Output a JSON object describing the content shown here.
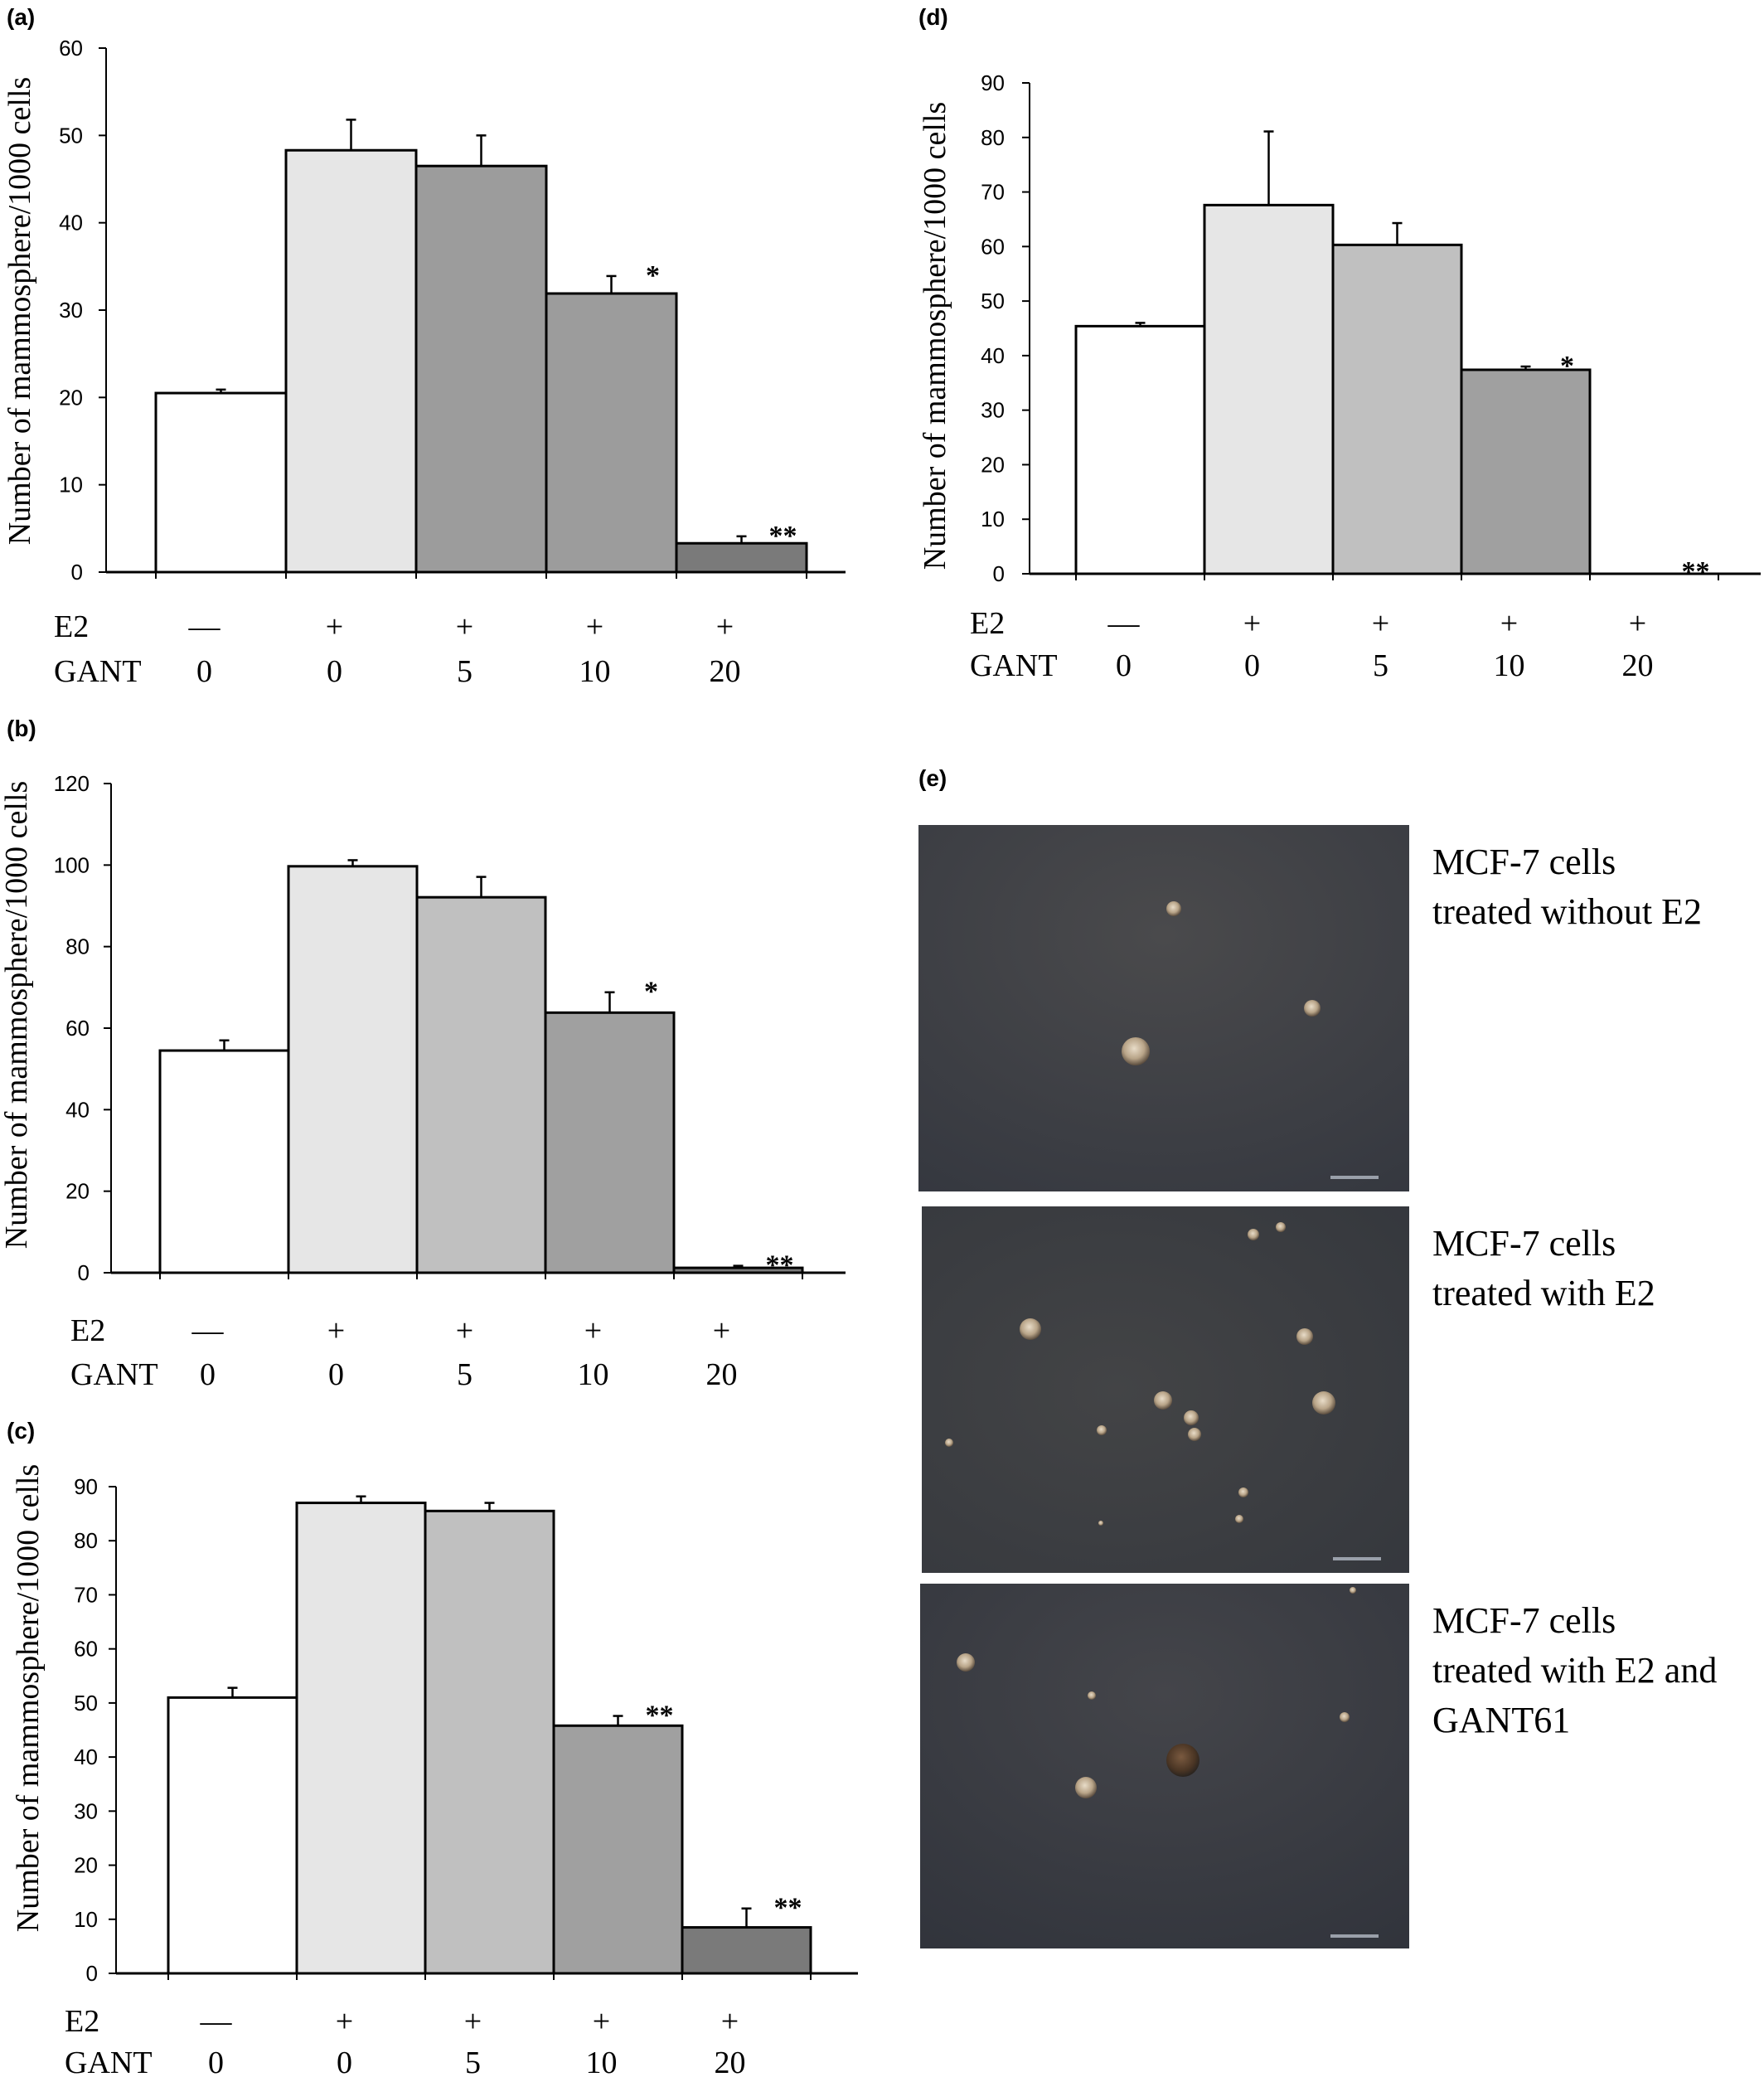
{
  "panels": [
    {
      "label": "(a)",
      "chart_data": {
        "type": "bar",
        "ylabel": "Number of mammosphere/1000 cells",
        "ylim": [
          0,
          60
        ],
        "yticks": [
          0,
          10,
          20,
          30,
          40,
          50,
          60
        ],
        "row_labels": [
          "E2",
          "GANT"
        ],
        "e2": [
          "—",
          "+",
          "+",
          "+",
          "+"
        ],
        "gant": [
          "0",
          "0",
          "5",
          "10",
          "20"
        ],
        "values": [
          20.5,
          48.3,
          46.5,
          31.9,
          3.3
        ],
        "errors": [
          0.4,
          3.5,
          3.5,
          2.0,
          0.8
        ],
        "significance": [
          "",
          "",
          "",
          "*",
          "**"
        ],
        "colors": [
          "#ffffff",
          "#e6e6e6",
          "#9c9c9c",
          "#9c9c9c",
          "#7a7a7a"
        ]
      }
    },
    {
      "label": "(b)",
      "chart_data": {
        "type": "bar",
        "ylabel": "Number of mammosphere/1000 cells",
        "ylim": [
          0,
          120
        ],
        "yticks": [
          0,
          20,
          40,
          60,
          80,
          100,
          120
        ],
        "row_labels": [
          "E2",
          "GANT"
        ],
        "e2": [
          "—",
          "+",
          "+",
          "+",
          "+"
        ],
        "gant": [
          "0",
          "0",
          "5",
          "10",
          "20"
        ],
        "values": [
          54.5,
          99.7,
          92.1,
          63.8,
          1.2
        ],
        "errors": [
          2.5,
          1.5,
          5.0,
          5.0,
          0.5
        ],
        "significance": [
          "",
          "",
          "",
          "*",
          "**"
        ],
        "colors": [
          "#ffffff",
          "#e6e6e6",
          "#c0c0c0",
          "#a0a0a0",
          "#7a7a7a"
        ]
      }
    },
    {
      "label": "(c)",
      "chart_data": {
        "type": "bar",
        "ylabel": "Number of mammosphere/1000 cells",
        "ylim": [
          0,
          90
        ],
        "yticks": [
          0,
          10,
          20,
          30,
          40,
          50,
          60,
          70,
          80,
          90
        ],
        "row_labels": [
          "E2",
          "GANT"
        ],
        "e2": [
          "—",
          "+",
          "+",
          "+",
          "+"
        ],
        "gant": [
          "0",
          "0",
          "5",
          "10",
          "20"
        ],
        "values": [
          51.0,
          87.0,
          85.5,
          45.8,
          8.5
        ],
        "errors": [
          1.8,
          1.2,
          1.5,
          1.8,
          3.5
        ],
        "significance": [
          "",
          "",
          "",
          "**",
          "**"
        ],
        "colors": [
          "#ffffff",
          "#e6e6e6",
          "#c0c0c0",
          "#a0a0a0",
          "#7a7a7a"
        ]
      }
    },
    {
      "label": "(d)",
      "chart_data": {
        "type": "bar",
        "ylabel": "Number of mammosphere/1000 cells",
        "ylim": [
          0,
          90
        ],
        "yticks": [
          0,
          10,
          20,
          30,
          40,
          50,
          60,
          70,
          80,
          90
        ],
        "row_labels": [
          "E2",
          "GANT"
        ],
        "e2": [
          "—",
          "+",
          "+",
          "+",
          "+"
        ],
        "gant": [
          "0",
          "0",
          "5",
          "10",
          "20"
        ],
        "values": [
          45.4,
          67.6,
          60.3,
          37.4,
          0
        ],
        "errors": [
          0.6,
          13.5,
          4.0,
          0.6,
          0
        ],
        "significance": [
          "",
          "",
          "",
          "*",
          "**"
        ],
        "colors": [
          "#ffffff",
          "#e6e6e6",
          "#c0c0c0",
          "#a0a0a0",
          "#7a7a7a"
        ]
      }
    }
  ],
  "panel_e": {
    "label": "(e)",
    "captions": [
      [
        "MCF-7 cells",
        "treated without E2"
      ],
      [
        "MCF-7 cells",
        "treated with E2"
      ],
      [
        "MCF-7 cells",
        "treated with E2 and",
        "GANT61"
      ]
    ]
  }
}
